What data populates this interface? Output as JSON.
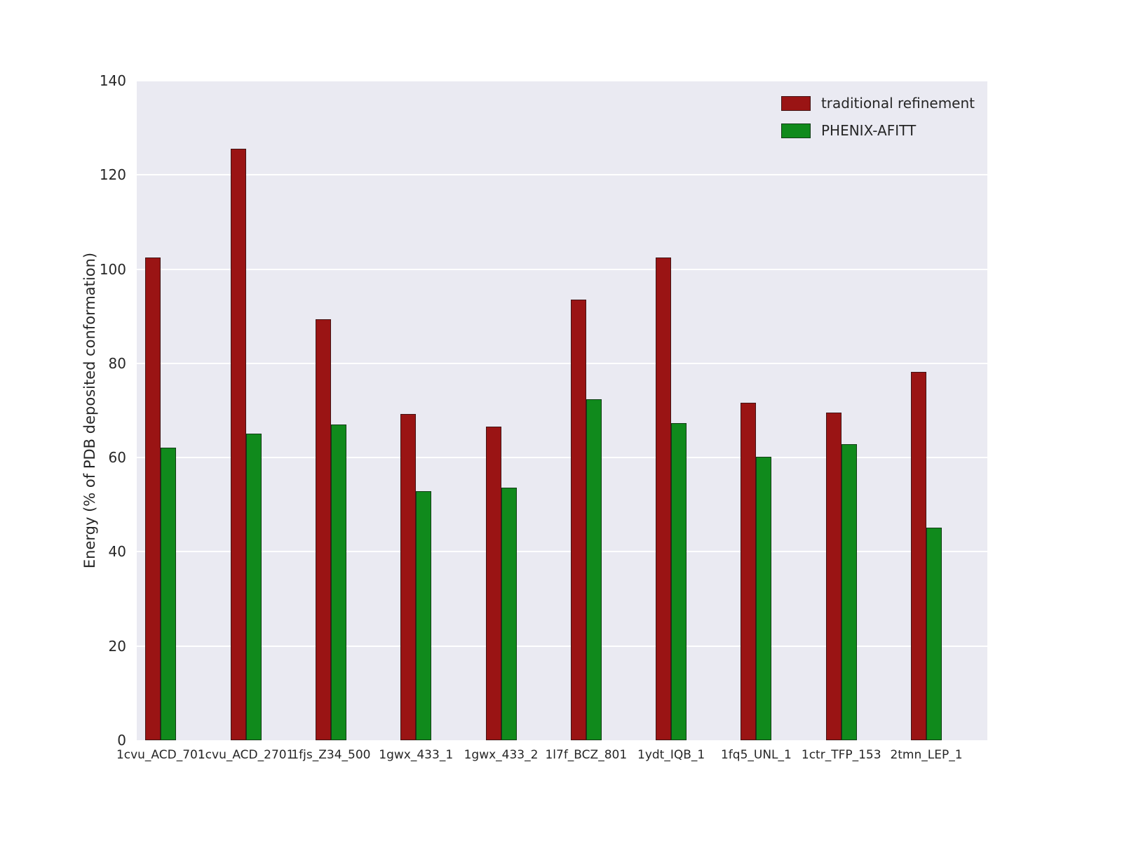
{
  "figure": {
    "background": "#ffffff",
    "plot_background": "#eaeaf2",
    "grid_color": "#ffffff",
    "text_color": "#262626"
  },
  "chart_data": {
    "type": "bar",
    "title": "",
    "xlabel": "",
    "ylabel": "Energy (% of PDB deposited conformation)",
    "ylim": [
      0,
      140
    ],
    "yticks": [
      0,
      20,
      40,
      60,
      80,
      100,
      120,
      140
    ],
    "grid": true,
    "legend_position": "upper right",
    "categories": [
      "1cvu_ACD_701",
      "1cvu_ACD_2701",
      "1fjs_Z34_500",
      "1gwx_433_1",
      "1gwx_433_2",
      "1l7f_BCZ_801",
      "1ydt_IQB_1",
      "1fq5_UNL_1",
      "1ctr_TFP_153",
      "2tmn_LEP_1"
    ],
    "series": [
      {
        "name": "traditional refinement",
        "color": "#9a1414",
        "values": [
          102.5,
          125.5,
          89.3,
          69.2,
          66.6,
          93.5,
          102.5,
          71.6,
          69.6,
          78.2
        ]
      },
      {
        "name": "PHENIX-AFITT",
        "color": "#108a1c",
        "values": [
          62.1,
          65.1,
          67.0,
          52.9,
          53.6,
          72.4,
          67.3,
          60.1,
          62.9,
          45.2
        ]
      }
    ]
  }
}
